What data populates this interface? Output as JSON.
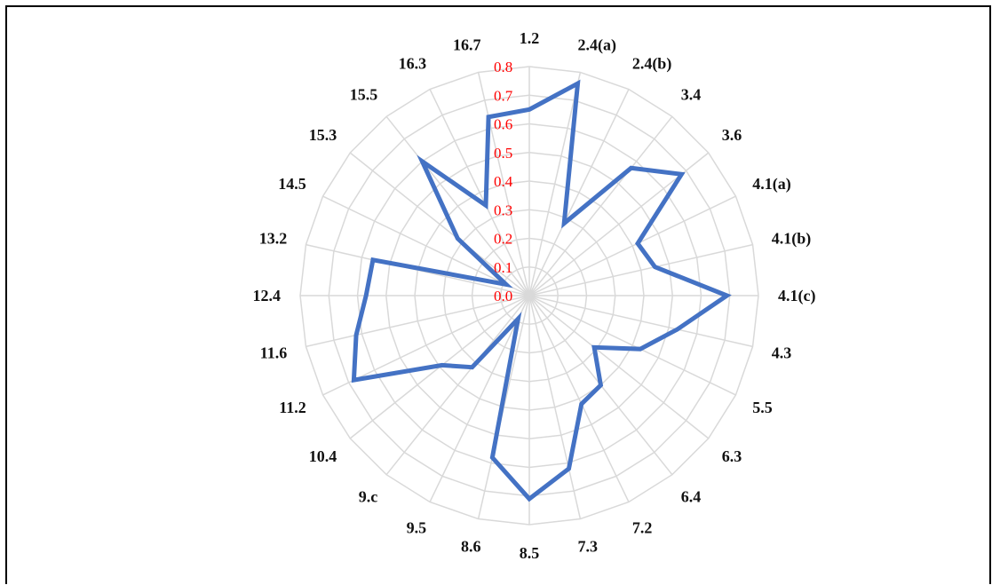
{
  "chart_data": {
    "type": "radar",
    "title": "",
    "categories": [
      "1.2",
      "2.4(a)",
      "2.4(b)",
      "3.4",
      "3.6",
      "4.1(a)",
      "4.1(b)",
      "4.1(c)",
      "4.3",
      "5.5",
      "6.3",
      "6.4",
      "7.2",
      "7.3",
      "8.5",
      "8.6",
      "9.5",
      "9.c",
      "10.4",
      "11.2",
      "11.6",
      "12.4",
      "13.2",
      "14.5",
      "15.3",
      "15.5",
      "16.3",
      "16.7"
    ],
    "series": [
      {
        "values": [
          0.65,
          0.76,
          0.28,
          0.57,
          0.68,
          0.42,
          0.45,
          0.69,
          0.53,
          0.43,
          0.29,
          0.4,
          0.42,
          0.62,
          0.71,
          0.58,
          0.09,
          0.32,
          0.39,
          0.68,
          0.62,
          0.57,
          0.56,
          0.09,
          0.32,
          0.6,
          0.35,
          0.64
        ],
        "color": "#4472C4"
      }
    ],
    "rlim": [
      0,
      0.8
    ],
    "ticks": [
      "0.0",
      "0.1",
      "0.2",
      "0.3",
      "0.4",
      "0.5",
      "0.6",
      "0.7",
      "0.8"
    ],
    "tick_color": "#FF0000",
    "grid_color": "#D9D9D9",
    "grid": true,
    "legend": "none"
  }
}
